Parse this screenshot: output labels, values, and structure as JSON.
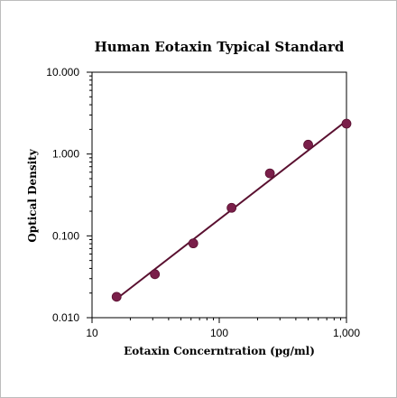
{
  "chart_data": {
    "type": "scatter",
    "title": "Human  Eotaxin  Typical  Standard",
    "xlabel": "Eotaxin  Concerntration  (pg/ml)",
    "ylabel": "Optical  Density",
    "x_scale": "log",
    "y_scale": "log",
    "xlim": [
      10,
      1000
    ],
    "ylim": [
      0.01,
      10
    ],
    "x_ticks": [
      {
        "value": 10,
        "label": "10"
      },
      {
        "value": 100,
        "label": "100"
      },
      {
        "value": 1000,
        "label": "1,000"
      }
    ],
    "y_ticks": [
      {
        "value": 0.01,
        "label": "0.010"
      },
      {
        "value": 0.1,
        "label": "0.100"
      },
      {
        "value": 1,
        "label": "1.000"
      },
      {
        "value": 10,
        "label": "10.000"
      }
    ],
    "grid": false,
    "legend": "none",
    "series": [
      {
        "type": "scatter",
        "marker_color": "#7a1f4a",
        "points": [
          {
            "x": 15.6,
            "y": 0.018
          },
          {
            "x": 31.2,
            "y": 0.034
          },
          {
            "x": 62.5,
            "y": 0.081
          },
          {
            "x": 125,
            "y": 0.22
          },
          {
            "x": 250,
            "y": 0.58
          },
          {
            "x": 500,
            "y": 1.3
          },
          {
            "x": 1000,
            "y": 2.35
          }
        ]
      },
      {
        "type": "line",
        "line_color": "#5a1030",
        "points": [
          {
            "x": 15.6,
            "y": 0.017
          },
          {
            "x": 1000,
            "y": 2.55
          }
        ]
      }
    ],
    "colors": {
      "marker": "#7a1f4a",
      "fit_line": "#5a1030",
      "axes": "#000000",
      "border": "#bdbdbd"
    }
  }
}
